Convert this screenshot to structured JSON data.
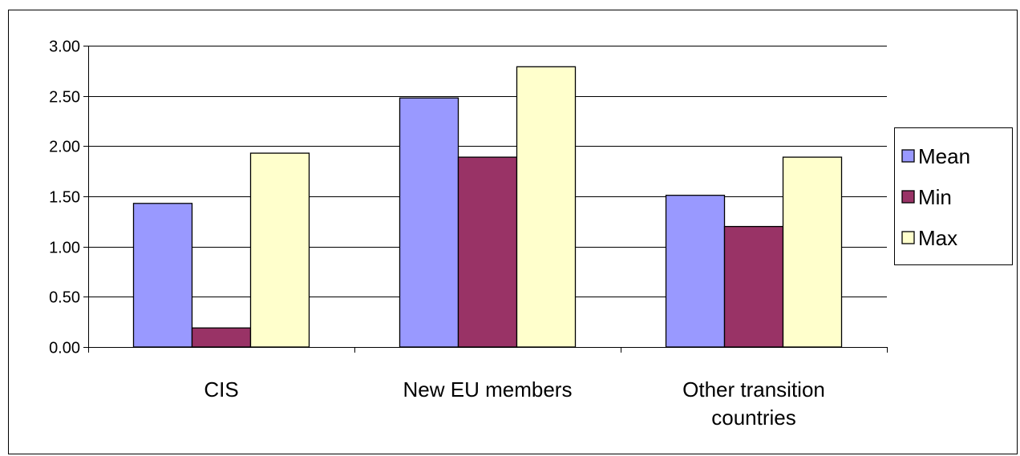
{
  "chart_data": {
    "type": "bar",
    "categories": [
      [
        "CIS"
      ],
      [
        "New EU members"
      ],
      [
        "Other transition",
        "countries"
      ]
    ],
    "series": [
      {
        "name": "Mean",
        "color": "#9999ff",
        "values": [
          1.43,
          2.48,
          1.51
        ]
      },
      {
        "name": "Min",
        "color": "#993366",
        "values": [
          0.19,
          1.89,
          1.2
        ]
      },
      {
        "name": "Max",
        "color": "#ffffcc",
        "values": [
          1.93,
          2.79,
          1.89
        ]
      }
    ],
    "yticks": [
      "0.00",
      "0.50",
      "1.00",
      "1.50",
      "2.00",
      "2.50",
      "3.00"
    ],
    "ylim": [
      0,
      3
    ],
    "grid": true,
    "legend_position": "right"
  }
}
